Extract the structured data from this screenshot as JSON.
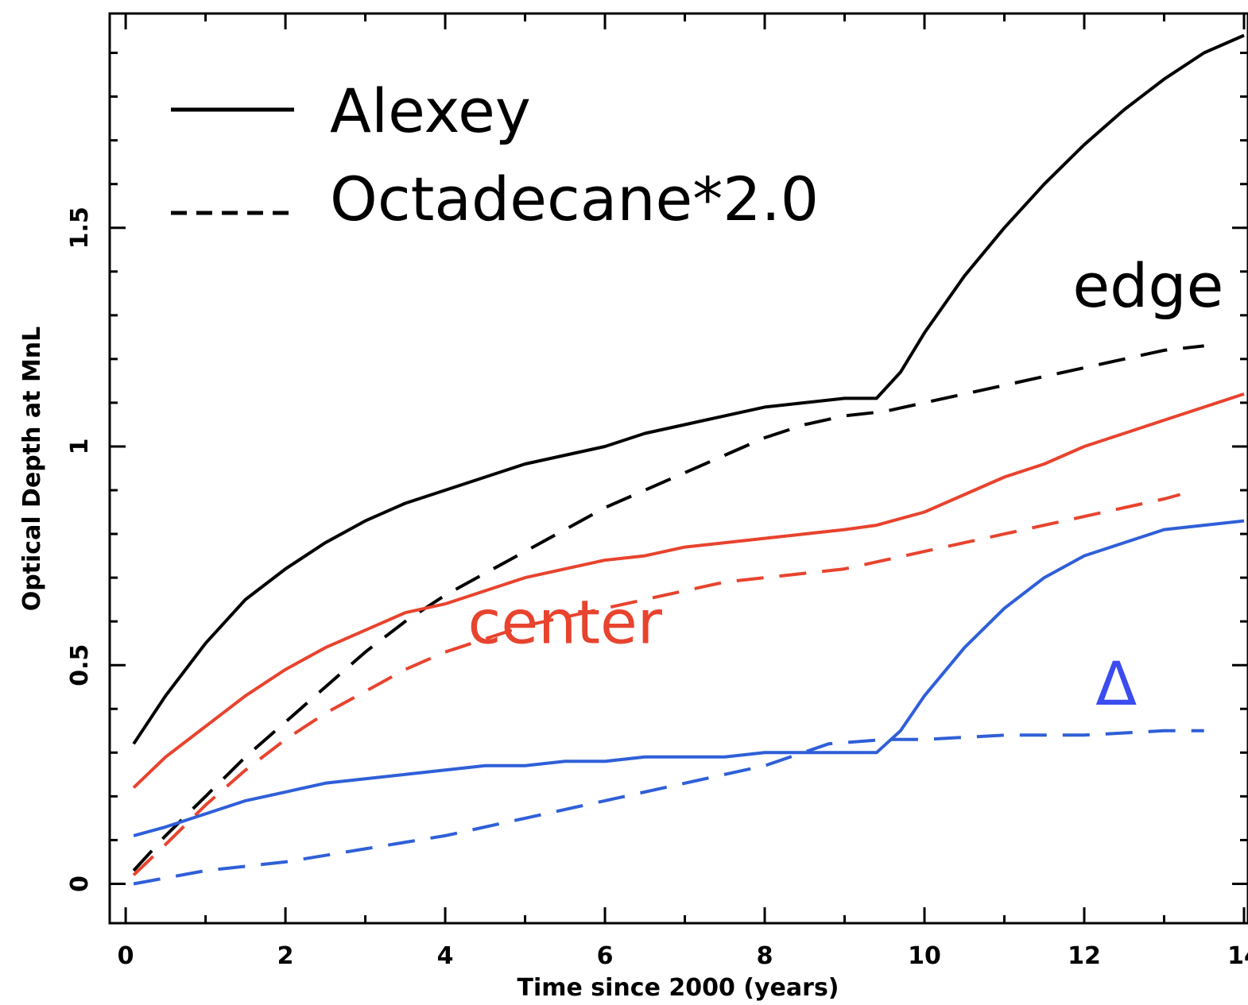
{
  "chart_data": {
    "type": "line",
    "title": "",
    "xlabel": "Time since 2000 (years)",
    "ylabel": "Optical Depth at MnL",
    "xlim": [
      -0.2,
      14.05
    ],
    "ylim": [
      -0.09,
      1.99
    ],
    "xticks": [
      0,
      2,
      4,
      6,
      8,
      10,
      12,
      14
    ],
    "xtick_labels": [
      "0",
      "2",
      "4",
      "6",
      "8",
      "10",
      "12",
      "14"
    ],
    "yticks": [
      0,
      0.5,
      1,
      1.5
    ],
    "ytick_labels": [
      "0",
      "0.5",
      "1",
      "1.5"
    ],
    "grid": false,
    "legend": {
      "position": "top-left",
      "entries": [
        {
          "label": "Alexey",
          "style": "solid"
        },
        {
          "label": "Octadecane*2.0",
          "style": "dashed"
        }
      ]
    },
    "annotations": [
      {
        "text": "edge",
        "color": "#000000",
        "x": 12.8,
        "y": 1.32
      },
      {
        "text": "center",
        "color": "#e8432e",
        "x": 5.5,
        "y": 0.55
      },
      {
        "text": "Δ",
        "color": "#3b4cf0",
        "x": 12.4,
        "y": 0.41
      }
    ],
    "series": [
      {
        "group": "edge",
        "style": "solid",
        "color": "#000000",
        "x": [
          0.1,
          0.5,
          1,
          1.5,
          2,
          2.5,
          3,
          3.5,
          4,
          4.5,
          5,
          5.5,
          6,
          6.5,
          7,
          7.5,
          8,
          8.5,
          9,
          9.4,
          9.7,
          10,
          10.5,
          11,
          11.5,
          12,
          12.5,
          13,
          13.5,
          14
        ],
        "y": [
          0.32,
          0.43,
          0.55,
          0.65,
          0.72,
          0.78,
          0.83,
          0.87,
          0.9,
          0.93,
          0.96,
          0.98,
          1.0,
          1.03,
          1.05,
          1.07,
          1.09,
          1.1,
          1.11,
          1.11,
          1.17,
          1.26,
          1.39,
          1.5,
          1.6,
          1.69,
          1.77,
          1.84,
          1.9,
          1.94
        ]
      },
      {
        "group": "edge",
        "style": "dashed",
        "color": "#000000",
        "x": [
          0.1,
          0.5,
          1,
          1.5,
          2,
          2.5,
          3,
          3.5,
          4,
          4.5,
          5,
          5.5,
          6,
          6.5,
          7,
          7.5,
          8,
          8.5,
          9,
          9.5,
          10,
          10.5,
          11,
          11.5,
          12,
          12.5,
          13,
          13.5
        ],
        "y": [
          0.03,
          0.11,
          0.2,
          0.29,
          0.37,
          0.45,
          0.53,
          0.6,
          0.66,
          0.71,
          0.76,
          0.81,
          0.86,
          0.9,
          0.94,
          0.98,
          1.02,
          1.05,
          1.07,
          1.08,
          1.1,
          1.12,
          1.14,
          1.16,
          1.18,
          1.2,
          1.22,
          1.23
        ]
      },
      {
        "group": "center",
        "style": "solid",
        "color": "#e8432e",
        "x": [
          0.1,
          0.5,
          1,
          1.5,
          2,
          2.5,
          3,
          3.5,
          4,
          4.5,
          5,
          5.5,
          6,
          6.5,
          7,
          7.5,
          8,
          8.5,
          9,
          9.4,
          10,
          10.5,
          11,
          11.5,
          12,
          12.5,
          13,
          13.5,
          14
        ],
        "y": [
          0.22,
          0.29,
          0.36,
          0.43,
          0.49,
          0.54,
          0.58,
          0.62,
          0.64,
          0.67,
          0.7,
          0.72,
          0.74,
          0.75,
          0.77,
          0.78,
          0.79,
          0.8,
          0.81,
          0.82,
          0.85,
          0.89,
          0.93,
          0.96,
          1.0,
          1.03,
          1.06,
          1.09,
          1.12
        ]
      },
      {
        "group": "center",
        "style": "dashed",
        "color": "#e8432e",
        "x": [
          0.1,
          0.5,
          1,
          1.5,
          2,
          2.5,
          3,
          3.5,
          4,
          4.5,
          5,
          5.5,
          6,
          6.5,
          7,
          7.5,
          8,
          8.5,
          9,
          9.5,
          10,
          10.5,
          11,
          11.5,
          12,
          12.5,
          13,
          13.2
        ],
        "y": [
          0.02,
          0.09,
          0.18,
          0.26,
          0.33,
          0.39,
          0.44,
          0.49,
          0.53,
          0.56,
          0.59,
          0.61,
          0.63,
          0.65,
          0.67,
          0.69,
          0.7,
          0.71,
          0.72,
          0.74,
          0.76,
          0.78,
          0.8,
          0.82,
          0.84,
          0.86,
          0.88,
          0.89
        ]
      },
      {
        "group": "delta",
        "style": "solid",
        "color": "#2f5fd8",
        "x": [
          0.1,
          0.5,
          1,
          1.5,
          2,
          2.5,
          3,
          3.5,
          4,
          4.5,
          5,
          5.5,
          6,
          6.5,
          7,
          7.5,
          8,
          8.5,
          9,
          9.4,
          9.7,
          10,
          10.5,
          11,
          11.5,
          12,
          12.5,
          13,
          13.5,
          14
        ],
        "y": [
          0.11,
          0.13,
          0.16,
          0.19,
          0.21,
          0.23,
          0.24,
          0.25,
          0.26,
          0.27,
          0.27,
          0.28,
          0.28,
          0.29,
          0.29,
          0.29,
          0.3,
          0.3,
          0.3,
          0.3,
          0.35,
          0.43,
          0.54,
          0.63,
          0.7,
          0.75,
          0.78,
          0.81,
          0.82,
          0.83
        ]
      },
      {
        "group": "delta",
        "style": "dashed",
        "color": "#2f5fd8",
        "x": [
          0.1,
          1,
          2,
          3,
          4,
          5,
          6,
          7,
          8,
          8.8,
          9.5,
          10,
          11,
          12,
          13,
          13.5
        ],
        "y": [
          0.0,
          0.03,
          0.05,
          0.08,
          0.11,
          0.15,
          0.19,
          0.23,
          0.27,
          0.32,
          0.33,
          0.33,
          0.34,
          0.34,
          0.35,
          0.35
        ]
      }
    ]
  }
}
